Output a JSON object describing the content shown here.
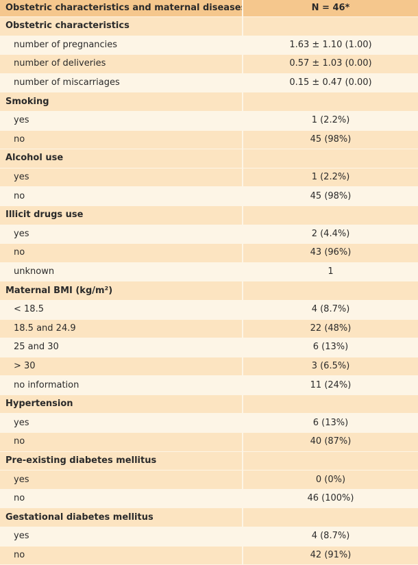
{
  "table": {
    "header": {
      "col1": "Obstetric characteristics and maternal diseases",
      "col2": "N = 46*"
    },
    "rows": [
      {
        "type": "section",
        "label": "Obstetric characteristics",
        "value": ""
      },
      {
        "type": "item",
        "label": "number of pregnancies",
        "value": "1.63 ± 1.10 (1.00)"
      },
      {
        "type": "item",
        "label": "number of deliveries",
        "value": "0.57 ± 1.03 (0.00)"
      },
      {
        "type": "item",
        "label": "number of miscarriages",
        "value": "0.15 ± 0.47 (0.00)"
      },
      {
        "type": "section",
        "label": "Smoking",
        "value": ""
      },
      {
        "type": "item",
        "label": "yes",
        "value": "1 (2.2%)"
      },
      {
        "type": "item",
        "label": "no",
        "value": "45 (98%)"
      },
      {
        "type": "section",
        "label": "Alcohol use",
        "value": ""
      },
      {
        "type": "item",
        "label": "yes",
        "value": "1 (2.2%)"
      },
      {
        "type": "item",
        "label": "no",
        "value": "45 (98%)"
      },
      {
        "type": "section",
        "label": "Illicit drugs use",
        "value": ""
      },
      {
        "type": "item",
        "label": "yes",
        "value": "2 (4.4%)"
      },
      {
        "type": "item",
        "label": "no",
        "value": "43 (96%)"
      },
      {
        "type": "item",
        "label": "unknown",
        "value": "1"
      },
      {
        "type": "section",
        "label": "Maternal BMI (kg/m²)",
        "value": ""
      },
      {
        "type": "item",
        "label": "< 18.5",
        "value": "4 (8.7%)"
      },
      {
        "type": "item",
        "label": "18.5 and 24.9",
        "value": "22 (48%)"
      },
      {
        "type": "item",
        "label": "25 and 30",
        "value": "6 (13%)"
      },
      {
        "type": "item",
        "label": "> 30",
        "value": "3 (6.5%)"
      },
      {
        "type": "item",
        "label": "no information",
        "value": "11 (24%)"
      },
      {
        "type": "section",
        "label": "Hypertension",
        "value": ""
      },
      {
        "type": "item",
        "label": "yes",
        "value": "6 (13%)"
      },
      {
        "type": "item",
        "label": "no",
        "value": "40 (87%)"
      },
      {
        "type": "section",
        "label": "Pre-existing diabetes mellitus",
        "value": ""
      },
      {
        "type": "item",
        "label": "yes",
        "value": "0 (0%)"
      },
      {
        "type": "item",
        "label": "no",
        "value": "46 (100%)"
      },
      {
        "type": "section",
        "label": "Gestational diabetes mellitus",
        "value": ""
      },
      {
        "type": "item",
        "label": "yes",
        "value": "4 (8.7%)"
      },
      {
        "type": "item",
        "label": "no",
        "value": "42 (91%)"
      }
    ]
  }
}
